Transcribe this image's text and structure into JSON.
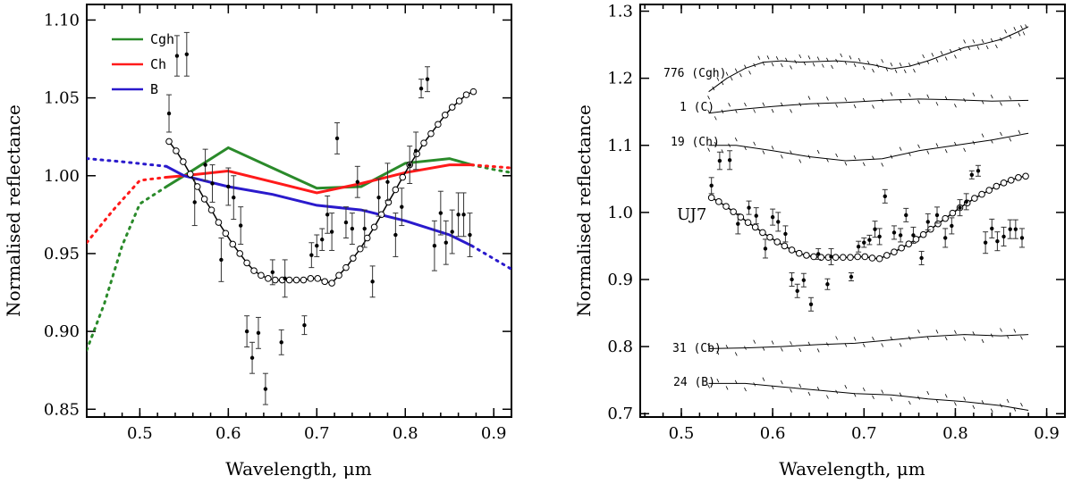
{
  "chart_data": [
    {
      "type": "line",
      "panel": "left",
      "title": "",
      "xlabel": "Wavelength, μm",
      "ylabel": "Normalised reflectance",
      "xlim": [
        0.44,
        0.92
      ],
      "ylim": [
        0.845,
        1.11
      ],
      "xticks": [
        0.5,
        0.6,
        0.7,
        0.8,
        0.9
      ],
      "xtick_labels": [
        "0.5",
        "0.6",
        "0.7",
        "0.8",
        "0.9"
      ],
      "yticks": [
        0.85,
        0.9,
        0.95,
        1.0,
        1.05,
        1.1
      ],
      "ytick_labels": [
        "0.85",
        "0.90",
        "0.95",
        "1.00",
        "1.05",
        "1.10"
      ],
      "legend": {
        "placement": "top-left",
        "entries": [
          {
            "label": "Cgh",
            "color": "#2a8a2a"
          },
          {
            "label": "Ch",
            "color": "#ff1a1a"
          },
          {
            "label": "B",
            "color": "#2a1acc"
          }
        ]
      },
      "series": [
        {
          "name": "Cgh",
          "color": "#2a8a2a",
          "solid": {
            "x": [
              0.53,
              0.55,
              0.6,
              0.65,
              0.7,
              0.75,
              0.8,
              0.85,
              0.875
            ],
            "y": [
              0.993,
              1.0,
              1.018,
              1.005,
              0.992,
              0.993,
              1.008,
              1.011,
              1.007
            ]
          },
          "dotted_left": {
            "x": [
              0.44,
              0.46,
              0.48,
              0.5,
              0.53
            ],
            "y": [
              0.888,
              0.918,
              0.955,
              0.982,
              0.993
            ]
          },
          "dotted_right": {
            "x": [
              0.875,
              0.9,
              0.92
            ],
            "y": [
              1.007,
              1.004,
              1.002
            ]
          }
        },
        {
          "name": "Ch",
          "color": "#ff1a1a",
          "solid": {
            "x": [
              0.53,
              0.55,
              0.6,
              0.65,
              0.7,
              0.75,
              0.8,
              0.85,
              0.875
            ],
            "y": [
              0.999,
              1.0,
              1.003,
              0.996,
              0.989,
              0.995,
              1.002,
              1.007,
              1.007
            ]
          },
          "dotted_left": {
            "x": [
              0.44,
              0.47,
              0.5,
              0.53
            ],
            "y": [
              0.957,
              0.978,
              0.997,
              0.999
            ]
          },
          "dotted_right": {
            "x": [
              0.875,
              0.92
            ],
            "y": [
              1.007,
              1.005
            ]
          }
        },
        {
          "name": "B",
          "color": "#2a1acc",
          "solid": {
            "x": [
              0.53,
              0.55,
              0.6,
              0.65,
              0.7,
              0.75,
              0.8,
              0.85,
              0.875
            ],
            "y": [
              1.006,
              1.0,
              0.993,
              0.988,
              0.981,
              0.978,
              0.971,
              0.962,
              0.955
            ]
          },
          "dotted_left": {
            "x": [
              0.44,
              0.48,
              0.53
            ],
            "y": [
              1.011,
              1.009,
              1.006
            ]
          },
          "dotted_right": {
            "x": [
              0.875,
              0.92
            ],
            "y": [
              0.955,
              0.94
            ]
          }
        },
        {
          "name": "UJ7 model fit",
          "color": "#000000",
          "markers": "open-circle",
          "x": [
            0.533,
            0.541,
            0.549,
            0.557,
            0.565,
            0.573,
            0.581,
            0.589,
            0.597,
            0.605,
            0.613,
            0.621,
            0.629,
            0.637,
            0.645,
            0.653,
            0.661,
            0.669,
            0.677,
            0.685,
            0.693,
            0.701,
            0.709,
            0.717,
            0.725,
            0.733,
            0.741,
            0.749,
            0.757,
            0.765,
            0.773,
            0.781,
            0.789,
            0.797,
            0.805,
            0.813,
            0.821,
            0.829,
            0.837,
            0.845,
            0.853,
            0.861,
            0.869,
            0.877
          ],
          "y": [
            1.022,
            1.016,
            1.009,
            1.001,
            0.993,
            0.985,
            0.978,
            0.97,
            0.963,
            0.956,
            0.95,
            0.944,
            0.939,
            0.936,
            0.934,
            0.933,
            0.933,
            0.933,
            0.933,
            0.933,
            0.934,
            0.934,
            0.932,
            0.931,
            0.936,
            0.941,
            0.947,
            0.953,
            0.96,
            0.967,
            0.975,
            0.983,
            0.991,
            0.999,
            1.007,
            1.014,
            1.021,
            1.027,
            1.033,
            1.039,
            1.044,
            1.048,
            1.052,
            1.054
          ]
        },
        {
          "name": "UJ7 observed",
          "color": "#000000",
          "markers": "filled-dot-errorbar",
          "x": [
            0.533,
            0.542,
            0.553,
            0.562,
            0.574,
            0.582,
            0.592,
            0.6,
            0.606,
            0.614,
            0.621,
            0.627,
            0.634,
            0.642,
            0.65,
            0.66,
            0.664,
            0.686,
            0.694,
            0.7,
            0.706,
            0.712,
            0.717,
            0.723,
            0.733,
            0.74,
            0.746,
            0.754,
            0.763,
            0.77,
            0.78,
            0.789,
            0.796,
            0.805,
            0.812,
            0.818,
            0.825,
            0.833,
            0.84,
            0.846,
            0.853,
            0.86,
            0.866,
            0.873
          ],
          "y": [
            1.04,
            1.077,
            1.078,
            0.983,
            1.007,
            0.995,
            0.946,
            0.993,
            0.986,
            0.968,
            0.9,
            0.883,
            0.899,
            0.863,
            0.938,
            0.893,
            0.934,
            0.904,
            0.949,
            0.955,
            0.959,
            0.975,
            0.964,
            1.024,
            0.97,
            0.966,
            0.996,
            0.966,
            0.932,
            0.986,
            0.996,
            0.962,
            0.98,
            1.007,
            1.016,
            1.056,
            1.062,
            0.955,
            0.976,
            0.957,
            0.964,
            0.975,
            0.975,
            0.962
          ],
          "err": [
            0.012,
            0.013,
            0.014,
            0.015,
            0.01,
            0.012,
            0.014,
            0.012,
            0.014,
            0.012,
            0.01,
            0.01,
            0.01,
            0.01,
            0.008,
            0.008,
            0.012,
            0.006,
            0.008,
            0.007,
            0.007,
            0.012,
            0.012,
            0.01,
            0.01,
            0.01,
            0.01,
            0.012,
            0.01,
            0.012,
            0.012,
            0.014,
            0.012,
            0.012,
            0.012,
            0.006,
            0.008,
            0.016,
            0.014,
            0.014,
            0.014,
            0.014,
            0.014,
            0.014
          ]
        }
      ]
    },
    {
      "type": "line",
      "panel": "right",
      "title": "",
      "xlabel": "Wavelength, μm",
      "ylabel": "Normalised reflectance",
      "xlim": [
        0.455,
        0.92
      ],
      "ylim": [
        0.695,
        1.31
      ],
      "xticks": [
        0.5,
        0.6,
        0.7,
        0.8,
        0.9
      ],
      "xtick_labels": [
        "0.5",
        "0.6",
        "0.7",
        "0.8",
        "0.9"
      ],
      "yticks": [
        0.7,
        0.8,
        0.9,
        1.0,
        1.1,
        1.2,
        1.3
      ],
      "ytick_labels": [
        "0.7",
        "0.8",
        "0.9",
        "1.0",
        "1.1",
        "1.2",
        "1.3"
      ],
      "series": [
        {
          "name": "776 (Cgh)",
          "x": [
            0.53,
            0.55,
            0.57,
            0.59,
            0.61,
            0.63,
            0.65,
            0.67,
            0.69,
            0.71,
            0.73,
            0.75,
            0.77,
            0.79,
            0.81,
            0.83,
            0.85,
            0.87,
            0.88
          ],
          "y": [
            1.18,
            1.2,
            1.215,
            1.224,
            1.226,
            1.224,
            1.225,
            1.226,
            1.224,
            1.22,
            1.214,
            1.218,
            1.226,
            1.236,
            1.246,
            1.251,
            1.258,
            1.27,
            1.277
          ]
        },
        {
          "name": "1 (C)",
          "x": [
            0.53,
            0.56,
            0.6,
            0.64,
            0.68,
            0.72,
            0.76,
            0.8,
            0.84,
            0.88
          ],
          "y": [
            1.148,
            1.153,
            1.158,
            1.162,
            1.164,
            1.167,
            1.169,
            1.168,
            1.166,
            1.167
          ]
        },
        {
          "name": "19 (Ch)",
          "x": [
            0.53,
            0.56,
            0.6,
            0.64,
            0.68,
            0.72,
            0.76,
            0.8,
            0.84,
            0.88
          ],
          "y": [
            1.1,
            1.1,
            1.092,
            1.083,
            1.077,
            1.08,
            1.092,
            1.1,
            1.108,
            1.118
          ]
        },
        {
          "name": "31 (Cb)",
          "x": [
            0.53,
            0.57,
            0.61,
            0.65,
            0.69,
            0.73,
            0.77,
            0.81,
            0.85,
            0.88
          ],
          "y": [
            0.797,
            0.798,
            0.8,
            0.803,
            0.805,
            0.81,
            0.815,
            0.818,
            0.816,
            0.818
          ]
        },
        {
          "name": "24 (B)",
          "x": [
            0.53,
            0.57,
            0.61,
            0.65,
            0.69,
            0.73,
            0.77,
            0.81,
            0.85,
            0.88
          ],
          "y": [
            0.745,
            0.745,
            0.74,
            0.735,
            0.73,
            0.728,
            0.722,
            0.718,
            0.712,
            0.705
          ]
        }
      ],
      "uj7_label": "UJ7",
      "uj7_offset": 0.0
    }
  ],
  "labels": {
    "left_xlabel": "Wavelength, μm",
    "left_ylabel": "Normalised reflectance",
    "right_xlabel": "Wavelength, μm",
    "right_ylabel": "Normalised reflectance",
    "legend_cgh": "Cgh",
    "legend_ch": "Ch",
    "legend_b": "B",
    "spec_776": "776 (Cgh)",
    "spec_1": "1 (C)",
    "spec_19": "19 (Ch)",
    "spec_uj7": "UJ7",
    "spec_31": "31 (Cb)",
    "spec_24": "24 (B)"
  }
}
